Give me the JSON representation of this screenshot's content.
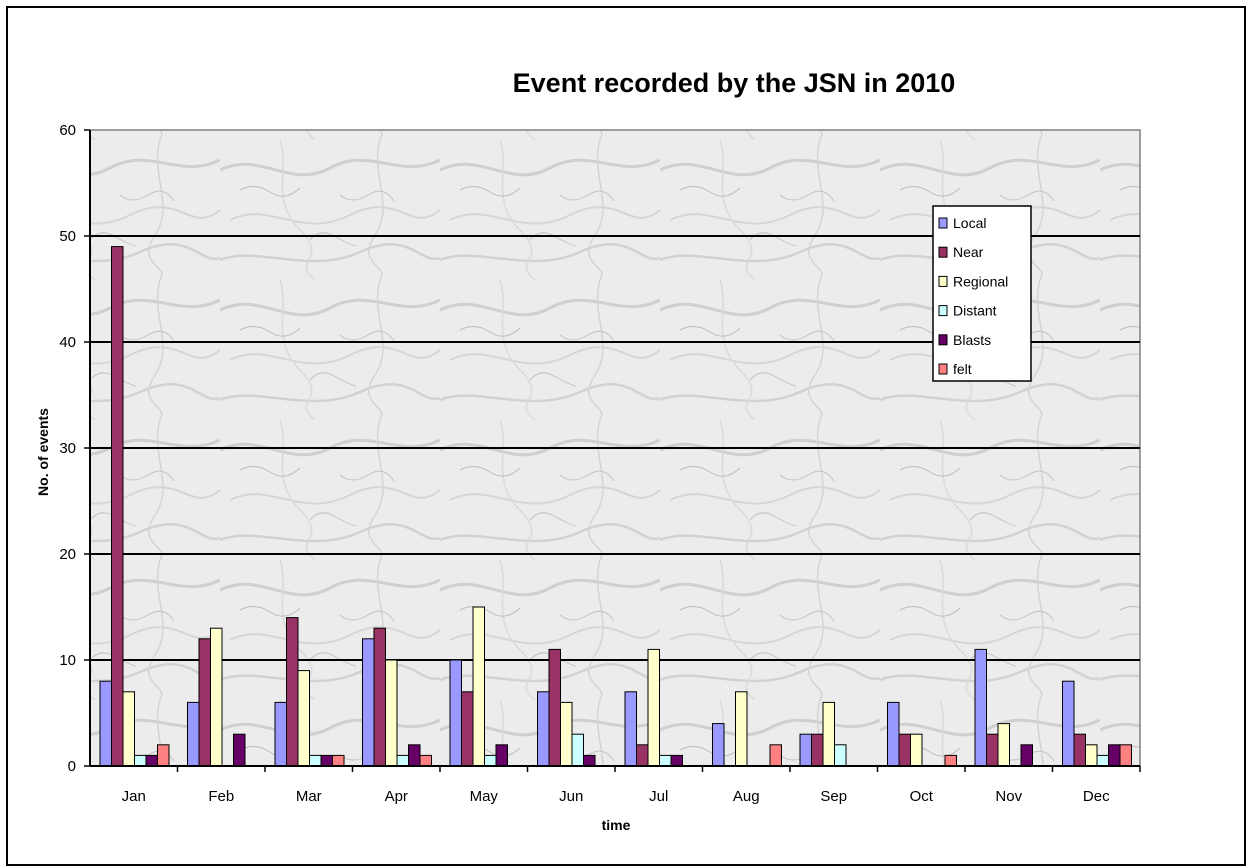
{
  "chart_data": {
    "type": "bar",
    "title": "Event recorded by the JSN in 2010",
    "xlabel": "time",
    "ylabel": "No. of events",
    "ylim": [
      0,
      60
    ],
    "yticks": [
      0,
      10,
      20,
      30,
      40,
      50,
      60
    ],
    "grid": true,
    "legend_position": "top-right",
    "categories": [
      "Jan",
      "Feb",
      "Mar",
      "Apr",
      "May",
      "Jun",
      "Jul",
      "Aug",
      "Sep",
      "Oct",
      "Nov",
      "Dec"
    ],
    "series": [
      {
        "name": "Local",
        "color": "#9999ff",
        "values": [
          8,
          6,
          6,
          12,
          10,
          7,
          7,
          4,
          3,
          6,
          11,
          8
        ]
      },
      {
        "name": "Near",
        "color": "#993366",
        "values": [
          49,
          12,
          14,
          13,
          7,
          11,
          2,
          0,
          3,
          3,
          3,
          3
        ]
      },
      {
        "name": "Regional",
        "color": "#ffffcc",
        "values": [
          7,
          13,
          9,
          10,
          15,
          6,
          11,
          7,
          6,
          3,
          4,
          2
        ]
      },
      {
        "name": "Distant",
        "color": "#ccffff",
        "values": [
          1,
          0,
          1,
          1,
          1,
          3,
          1,
          0,
          2,
          0,
          0,
          1
        ]
      },
      {
        "name": "Blasts",
        "color": "#660066",
        "values": [
          1,
          3,
          1,
          2,
          2,
          1,
          1,
          0,
          0,
          0,
          2,
          2
        ]
      },
      {
        "name": "felt",
        "color": "#ff8080",
        "values": [
          2,
          0,
          1,
          1,
          0,
          0,
          0,
          2,
          0,
          1,
          0,
          2
        ]
      }
    ]
  }
}
